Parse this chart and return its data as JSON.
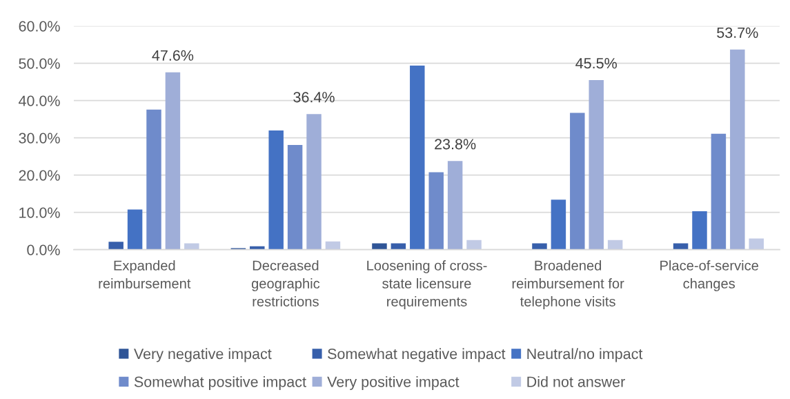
{
  "chart_data": {
    "type": "bar",
    "categories": [
      "Expanded\nreimbursement",
      "Decreased\ngeographic\nrestrictions",
      "Loosening of cross-\nstate licensure\nrequirements",
      "Broadened\nreimbursement for\ntelephone visits",
      "Place-of-service\nchanges"
    ],
    "series": [
      {
        "name": "Very negative impact",
        "color": "#2f5597",
        "values": [
          null,
          0.4,
          1.7,
          null,
          null
        ]
      },
      {
        "name": "Somewhat negative impact",
        "color": "#375fab",
        "values": [
          2.1,
          0.9,
          1.7,
          1.7,
          1.7
        ]
      },
      {
        "name": "Neutral/no impact",
        "color": "#4472c4",
        "values": [
          10.8,
          32.0,
          49.4,
          13.4,
          10.3
        ]
      },
      {
        "name": "Somewhat positive impact",
        "color": "#6f8bcb",
        "values": [
          37.6,
          28.1,
          20.8,
          36.7,
          31.1
        ]
      },
      {
        "name": "Very positive impact",
        "color": "#9faed8",
        "values": [
          47.6,
          36.4,
          23.8,
          45.5,
          53.7
        ],
        "value_labels": [
          "47.6%",
          "36.4%",
          "23.8%",
          "45.5%",
          "53.7%"
        ]
      },
      {
        "name": "Did not answer",
        "color": "#c1cae5",
        "values": [
          1.7,
          2.2,
          2.6,
          2.6,
          3.0
        ]
      }
    ],
    "ylim": [
      0,
      60
    ],
    "yticks": [
      {
        "value": 0,
        "label": "0.0%"
      },
      {
        "value": 10,
        "label": "10.0%"
      },
      {
        "value": 20,
        "label": "20.0%"
      },
      {
        "value": 30,
        "label": "30.0%"
      },
      {
        "value": 40,
        "label": "40.0%"
      },
      {
        "value": 50,
        "label": "50.0%"
      },
      {
        "value": 60,
        "label": "60.0%"
      }
    ],
    "grid": "y",
    "legend": "bottom"
  }
}
